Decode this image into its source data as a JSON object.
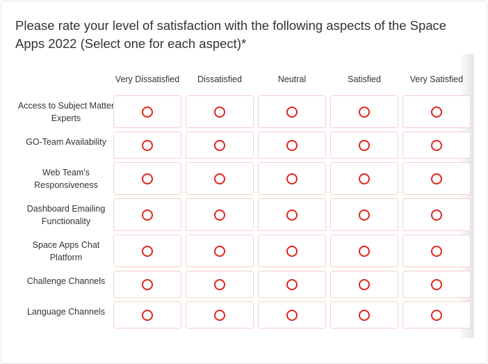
{
  "question": {
    "title": "Please rate your level of satisfaction with the following aspects of the Space Apps 2022 (Select one for each aspect)*"
  },
  "columns": [
    "Very Dissatisfied",
    "Dissatisfied",
    "Neutral",
    "Satisfied",
    "Very Satisfied"
  ],
  "rows": [
    "Access to Subject Matter Experts",
    "GO-Team Availability",
    "Web Team's Responsiveness",
    "Dashboard Emailing Functionality",
    "Space Apps Chat Platform",
    "Challenge Channels",
    "Language Channels"
  ],
  "colors": {
    "radio": "#e0241b",
    "cell_border": "#f6cfca"
  },
  "selected": [
    null,
    null,
    null,
    null,
    null,
    null,
    null
  ]
}
